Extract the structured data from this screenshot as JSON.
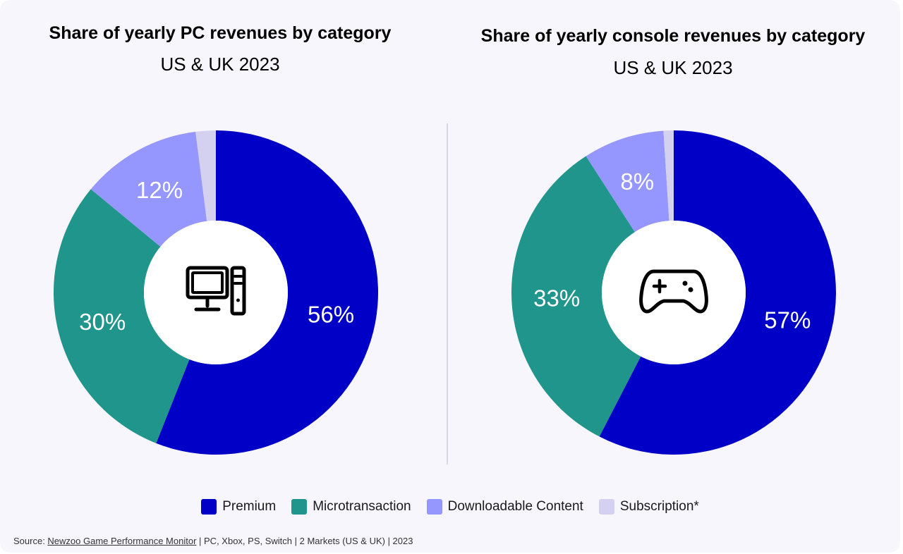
{
  "colors": {
    "premium": "#0000c6",
    "microtransaction": "#20958b",
    "dlc": "#9597ff",
    "subscription": "#d3d1ef",
    "background": "#f7f6fc"
  },
  "legend": [
    {
      "label": "Premium",
      "color": "#0000c6"
    },
    {
      "label": "Microtransaction",
      "color": "#20958b"
    },
    {
      "label": "Downloadable Content",
      "color": "#9597ff"
    },
    {
      "label": "Subscription*",
      "color": "#d3d1ef"
    }
  ],
  "source": {
    "prefix": "Source: ",
    "link": "Newzoo Game Performance Monitor",
    "suffix": " | PC, Xbox, PS, Switch | 2 Markets (US & UK) | 2023"
  },
  "chart_data": [
    {
      "type": "pie",
      "title": "Share of yearly PC revenues by category",
      "subtitle": "US & UK 2023",
      "center_icon": "desktop-computer-icon",
      "categories": [
        "Premium",
        "Microtransaction",
        "Downloadable Content",
        "Subscription*"
      ],
      "values": [
        56,
        30,
        12,
        2
      ],
      "labels": [
        "56%",
        "30%",
        "12%",
        ""
      ]
    },
    {
      "type": "pie",
      "title": "Share of yearly console revenues by category",
      "subtitle": "US & UK 2023",
      "center_icon": "gamepad-icon",
      "categories": [
        "Premium",
        "Microtransaction",
        "Downloadable Content",
        "Subscription*"
      ],
      "values": [
        57,
        33,
        8,
        1
      ],
      "labels": [
        "57%",
        "33%",
        "8%",
        ""
      ]
    }
  ]
}
